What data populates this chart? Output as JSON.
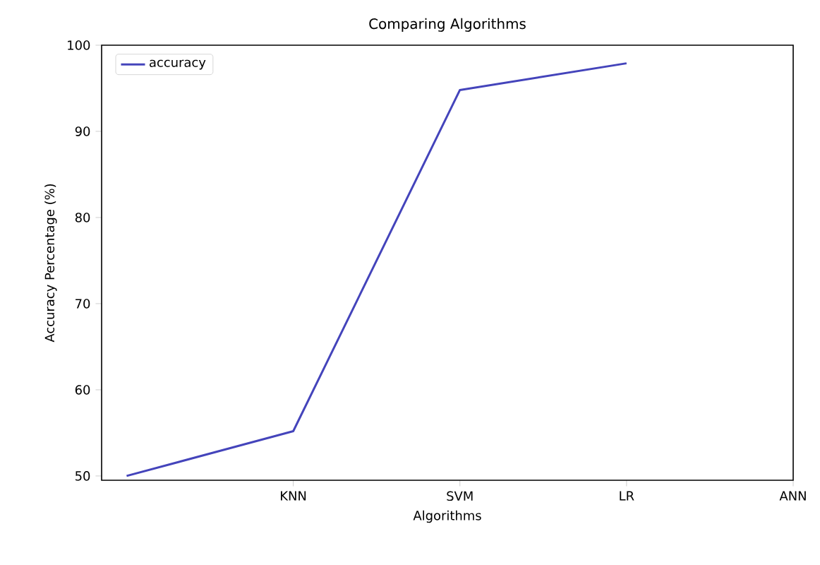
{
  "chart_data": {
    "type": "line",
    "title": "Comparing Algorithms",
    "xlabel": "Algorithms",
    "ylabel": "Accuracy Percentage (%)",
    "categories": [
      null,
      "KNN",
      "SVM",
      "LR",
      "ANN"
    ],
    "series": [
      {
        "name": "accuracy",
        "color": "#4444bb",
        "values": [
          50,
          55.2,
          94.8,
          97.9,
          null
        ]
      }
    ],
    "ylim": [
      49.5,
      100
    ],
    "yticks": [
      50,
      60,
      70,
      80,
      90,
      100
    ],
    "legend": "top left",
    "grid": false
  }
}
